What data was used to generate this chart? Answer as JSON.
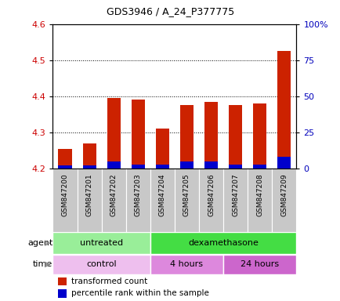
{
  "title": "GDS3946 / A_24_P377775",
  "samples": [
    "GSM847200",
    "GSM847201",
    "GSM847202",
    "GSM847203",
    "GSM847204",
    "GSM847205",
    "GSM847206",
    "GSM847207",
    "GSM847208",
    "GSM847209"
  ],
  "transformed_count": [
    4.255,
    4.27,
    4.395,
    4.39,
    4.31,
    4.375,
    4.385,
    4.375,
    4.38,
    4.525
  ],
  "percentile_rank": [
    2,
    2,
    5,
    3,
    3,
    5,
    5,
    3,
    3,
    8
  ],
  "baseline": 4.2,
  "ylim_left": [
    4.2,
    4.6
  ],
  "ylim_right": [
    0,
    100
  ],
  "yticks_left": [
    4.2,
    4.3,
    4.4,
    4.5,
    4.6
  ],
  "yticks_right": [
    0,
    25,
    50,
    75,
    100
  ],
  "ytick_labels_right": [
    "0",
    "25",
    "50",
    "75",
    "100%"
  ],
  "agent_groups": [
    {
      "label": "untreated",
      "start": 0,
      "end": 4,
      "color": "#99EE99"
    },
    {
      "label": "dexamethasone",
      "start": 4,
      "end": 10,
      "color": "#44DD44"
    }
  ],
  "time_groups": [
    {
      "label": "control",
      "start": 0,
      "end": 4,
      "color": "#EEBFEE"
    },
    {
      "label": "4 hours",
      "start": 4,
      "end": 7,
      "color": "#DD88DD"
    },
    {
      "label": "24 hours",
      "start": 7,
      "end": 10,
      "color": "#CC66CC"
    }
  ],
  "bar_color_red": "#CC2200",
  "bar_color_blue": "#0000CC",
  "bar_width": 0.55,
  "tick_label_color_left": "#CC0000",
  "tick_label_color_right": "#0000BB",
  "xlabel_gray_bg": "#C8C8C8",
  "agent_label": "agent",
  "time_label": "time",
  "legend_red": "transformed count",
  "legend_blue": "percentile rank within the sample"
}
